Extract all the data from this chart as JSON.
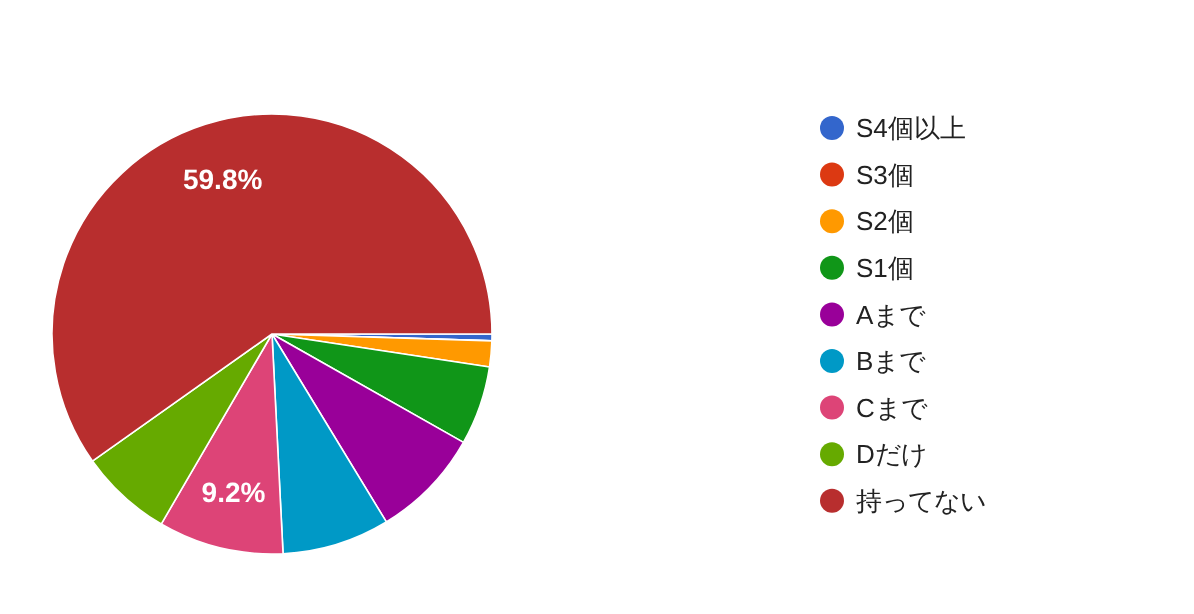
{
  "chart_data": {
    "type": "pie",
    "categories": [
      "S4個以上",
      "S3個",
      "S2個",
      "S1個",
      "Aまで",
      "Bまで",
      "Cまで",
      "Dだけ",
      "持ってない"
    ],
    "values": [
      0.5,
      0,
      1.9,
      5.8,
      8.1,
      7.9,
      9.2,
      6.8,
      59.8
    ],
    "colors": [
      "#3366cc",
      "#dc3912",
      "#ff9900",
      "#109618",
      "#990099",
      "#0099c6",
      "#dd4477",
      "#66aa00",
      "#b82e2e"
    ],
    "value_labels": [
      null,
      null,
      null,
      null,
      null,
      null,
      "9.2%",
      null,
      "59.8%"
    ],
    "legend": "right"
  }
}
